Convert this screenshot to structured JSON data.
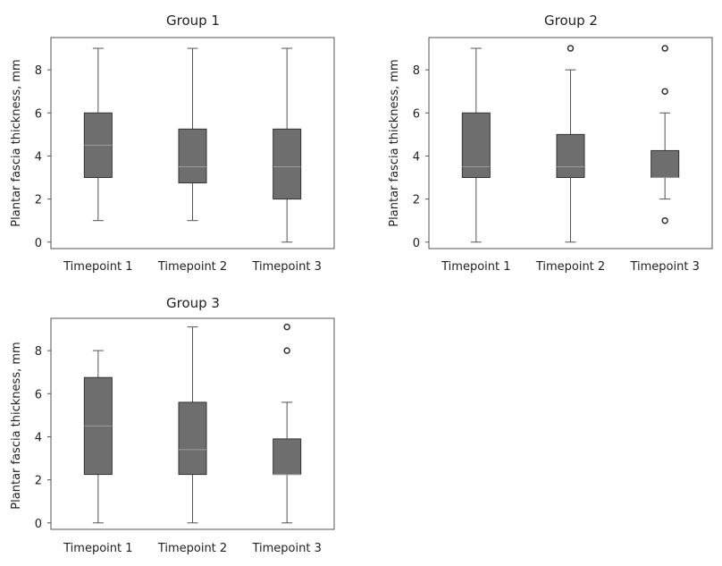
{
  "chart_data": [
    {
      "type": "boxplot",
      "title": "Group 1",
      "xlabel": "",
      "ylabel": "Plantar fascia thickness, mm",
      "ylim": [
        -0.3,
        9.5
      ],
      "yticks": [
        0,
        2,
        4,
        6,
        8
      ],
      "categories": [
        "Timepoint 1",
        "Timepoint 2",
        "Timepoint 3"
      ],
      "boxes": [
        {
          "min": 1,
          "q1": 3,
          "median": 4.5,
          "q3": 6,
          "max": 9,
          "outliers": []
        },
        {
          "min": 1,
          "q1": 2.75,
          "median": 3.5,
          "q3": 5.25,
          "max": 9,
          "outliers": []
        },
        {
          "min": 0,
          "q1": 2,
          "median": 3.5,
          "q3": 5.25,
          "max": 9,
          "outliers": []
        }
      ],
      "grid": false,
      "box_color": "#6e6e6e",
      "median_color": "#9a9a9a"
    },
    {
      "type": "boxplot",
      "title": "Group 2",
      "xlabel": "",
      "ylabel": "Plantar fascia thickness, mm",
      "ylim": [
        -0.3,
        9.5
      ],
      "yticks": [
        0,
        2,
        4,
        6,
        8
      ],
      "categories": [
        "Timepoint 1",
        "Timepoint 2",
        "Timepoint 3"
      ],
      "boxes": [
        {
          "min": 0,
          "q1": 3,
          "median": 3.5,
          "q3": 6,
          "max": 9,
          "outliers": []
        },
        {
          "min": 0,
          "q1": 3,
          "median": 3.5,
          "q3": 5,
          "max": 8,
          "outliers": [
            9
          ]
        },
        {
          "min": 2,
          "q1": 3,
          "median": 3,
          "q3": 4.25,
          "max": 6,
          "outliers": [
            1,
            7,
            9
          ]
        }
      ],
      "grid": false,
      "box_color": "#6e6e6e",
      "median_color": "#9a9a9a"
    },
    {
      "type": "boxplot",
      "title": "Group 3",
      "xlabel": "",
      "ylabel": "Plantar fascia thickness, mm",
      "ylim": [
        -0.3,
        9.5
      ],
      "yticks": [
        0,
        2,
        4,
        6,
        8
      ],
      "categories": [
        "Timepoint 1",
        "Timepoint 2",
        "Timepoint 3"
      ],
      "boxes": [
        {
          "min": 0,
          "q1": 2.25,
          "median": 4.5,
          "q3": 6.75,
          "max": 8,
          "outliers": []
        },
        {
          "min": 0,
          "q1": 2.25,
          "median": 3.4,
          "q3": 5.6,
          "max": 9.1,
          "outliers": []
        },
        {
          "min": 0,
          "q1": 2.25,
          "median": 2.25,
          "q3": 3.9,
          "max": 5.6,
          "outliers": [
            8,
            9.1
          ]
        }
      ],
      "grid": false,
      "box_color": "#6e6e6e",
      "median_color": "#9a9a9a"
    }
  ]
}
